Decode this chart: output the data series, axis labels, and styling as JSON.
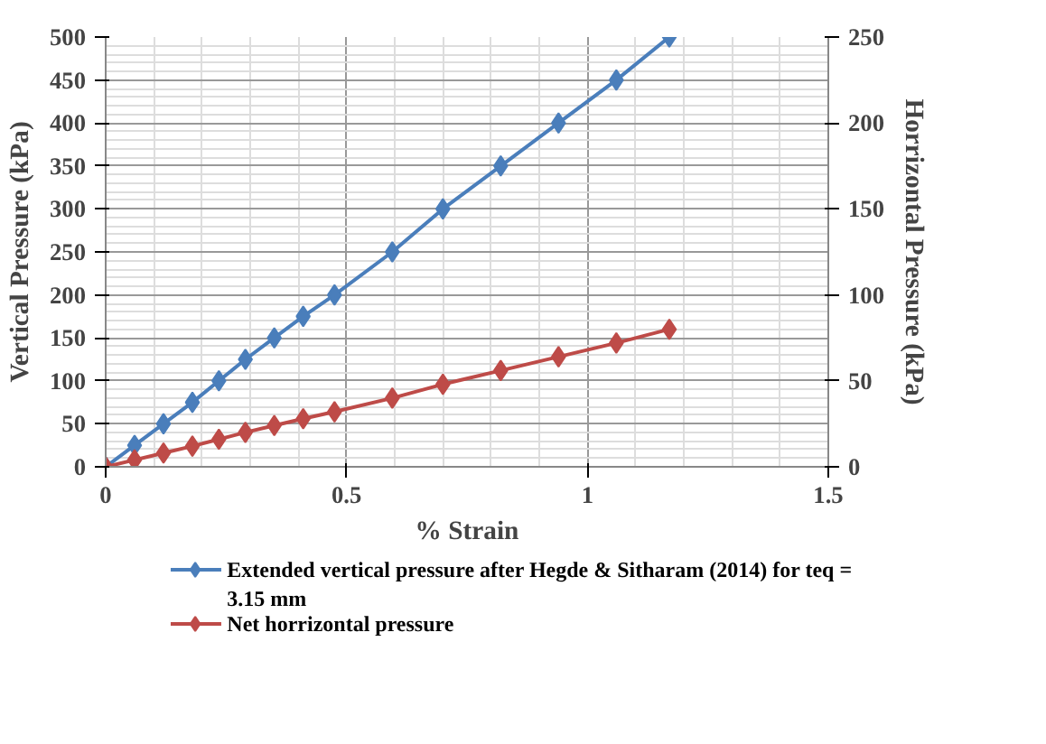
{
  "chart_data": {
    "type": "line",
    "xlabel": "% Strain",
    "ylabel": "Vertical Pressure (kPa)",
    "y2label": "Horrizontal Pressure (kPa)",
    "x": [
      0,
      0.06,
      0.12,
      0.18,
      0.235,
      0.29,
      0.35,
      0.41,
      0.475,
      0.595,
      0.7,
      0.82,
      0.94,
      1.06,
      1.17
    ],
    "series": [
      {
        "name": "Extended vertical pressure after Hegde & Sitharam (2014) for teq = 3.15 mm",
        "color": "#4a7ebb",
        "values": [
          0,
          25,
          50,
          75,
          100,
          125,
          150,
          175,
          200,
          250,
          300,
          350,
          400,
          450,
          500
        ]
      },
      {
        "name": "Net horrizontal pressure",
        "color": "#be4b48",
        "axis": "y2",
        "values": [
          0,
          4,
          8,
          12,
          16,
          20,
          24,
          28,
          32,
          40,
          48,
          56,
          64,
          72,
          80
        ]
      }
    ],
    "xlim": [
      0,
      1.5
    ],
    "xticks": [
      0,
      0.5,
      1,
      1.5
    ],
    "ylim": [
      0,
      500
    ],
    "yticks": [
      0,
      50,
      100,
      150,
      200,
      250,
      300,
      350,
      400,
      450,
      500
    ],
    "y2lim": [
      0,
      250
    ],
    "y2ticks": [
      0,
      50,
      100,
      150,
      200,
      250
    ],
    "grid": true,
    "legend": "bottom",
    "marker": "diamond",
    "line_style": "solid"
  }
}
